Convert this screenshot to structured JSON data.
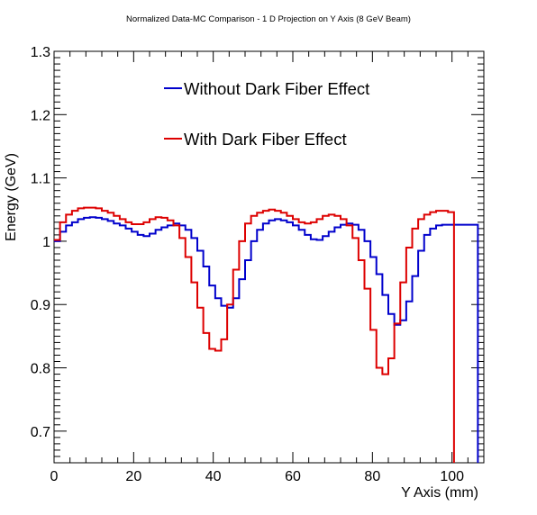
{
  "chart_data": {
    "type": "line",
    "title": "Normalized Data-MC Comparison - 1 D Projection on Y Axis (8 GeV Beam)",
    "xlabel": "Y Axis (mm)",
    "ylabel": "Energy (GeV)",
    "xlim": [
      0,
      108
    ],
    "ylim": [
      0.65,
      1.3
    ],
    "x_ticks": [
      0,
      20,
      40,
      60,
      80,
      100
    ],
    "y_ticks": [
      0.7,
      0.8,
      0.9,
      1,
      1.1,
      1.2,
      1.3
    ],
    "x_tick_labels": [
      "0",
      "20",
      "40",
      "60",
      "80",
      "100"
    ],
    "y_tick_labels": [
      "0.7",
      "0.8",
      "0.9",
      "1",
      "1.1",
      "1.2",
      "1.3"
    ],
    "grid": false,
    "legend_position": "top-center",
    "bin_width": 1.5,
    "x_start": 0,
    "series": [
      {
        "name": "Without Dark Fiber Effect",
        "color": "#0000cc",
        "values": [
          1.0,
          1.015,
          1.025,
          1.03,
          1.035,
          1.037,
          1.038,
          1.037,
          1.035,
          1.032,
          1.028,
          1.025,
          1.02,
          1.015,
          1.01,
          1.008,
          1.012,
          1.018,
          1.022,
          1.025,
          1.028,
          1.025,
          1.018,
          1.005,
          0.985,
          0.96,
          0.93,
          0.91,
          0.898,
          0.895,
          0.91,
          0.94,
          0.97,
          1.0,
          1.018,
          1.028,
          1.033,
          1.035,
          1.033,
          1.03,
          1.025,
          1.018,
          1.01,
          1.003,
          1.002,
          1.008,
          1.015,
          1.022,
          1.026,
          1.028,
          1.026,
          1.018,
          1.0,
          0.975,
          0.948,
          0.915,
          0.885,
          0.868,
          0.875,
          0.905,
          0.945,
          0.985,
          1.01,
          1.02,
          1.025,
          1.026,
          1.026,
          1.026,
          1.026,
          1.026,
          1.026
        ],
        "drop_at_end": 0.65
      },
      {
        "name": "With Dark Fiber Effect",
        "color": "#dd0000",
        "values": [
          1.002,
          1.03,
          1.042,
          1.048,
          1.052,
          1.053,
          1.053,
          1.052,
          1.048,
          1.045,
          1.04,
          1.035,
          1.03,
          1.027,
          1.027,
          1.03,
          1.035,
          1.038,
          1.037,
          1.033,
          1.025,
          1.005,
          0.975,
          0.935,
          0.895,
          0.855,
          0.83,
          0.827,
          0.845,
          0.9,
          0.955,
          1.0,
          1.028,
          1.04,
          1.045,
          1.048,
          1.05,
          1.048,
          1.045,
          1.04,
          1.035,
          1.03,
          1.028,
          1.03,
          1.035,
          1.04,
          1.042,
          1.04,
          1.035,
          1.025,
          1.005,
          0.97,
          0.925,
          0.86,
          0.8,
          0.79,
          0.815,
          0.87,
          0.935,
          0.99,
          1.02,
          1.035,
          1.042,
          1.046,
          1.048,
          1.048,
          1.046
        ],
        "drop_at_end": 0.65
      }
    ]
  }
}
